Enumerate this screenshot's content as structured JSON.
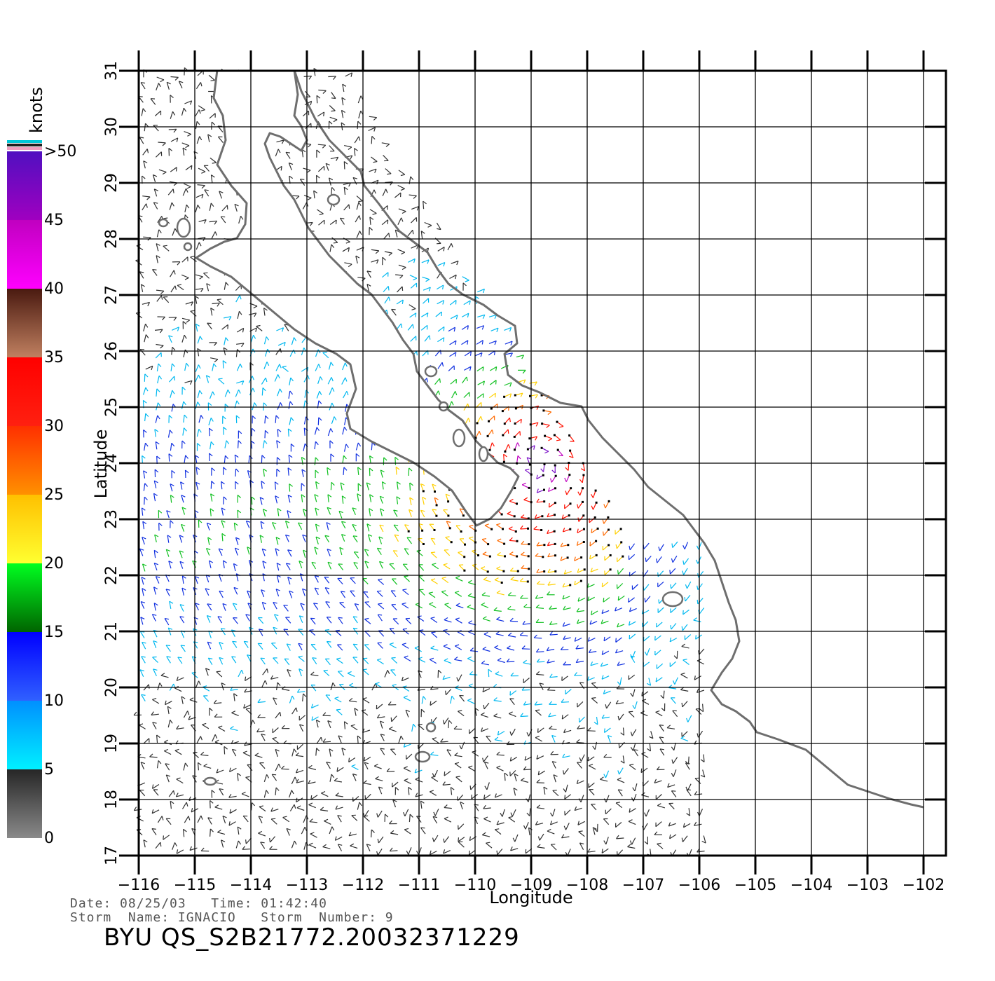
{
  "map": {
    "lon_range": [
      -116,
      -101.6
    ],
    "lat_range": [
      17,
      31
    ],
    "lon_ticks": [
      -116,
      -115,
      -114,
      -113,
      -112,
      -111,
      -110,
      -109,
      -108,
      -107,
      -106,
      -105,
      -104,
      -103,
      -102
    ],
    "lat_ticks": [
      17,
      18,
      19,
      20,
      21,
      22,
      23,
      24,
      25,
      26,
      27,
      28,
      29,
      30,
      31
    ],
    "lon_tick_labels": [
      "−116",
      "−115",
      "−114",
      "−113",
      "−112",
      "−111",
      "−110",
      "−109",
      "−108",
      "−107",
      "−106",
      "−105",
      "−104",
      "−103",
      "−102"
    ],
    "lat_tick_labels": [
      "17",
      "18",
      "19",
      "20",
      "21",
      "22",
      "23",
      "24",
      "25",
      "26",
      "27",
      "28",
      "29",
      "30",
      "31"
    ],
    "xlabel": "Longitude",
    "ylabel": "Latitude",
    "grid": true,
    "coastline_color": "#6e6e6e",
    "land_color": "#ffffff",
    "wind_vector_field": {
      "type": "wind barbs",
      "storm_center": {
        "lon": -108.9,
        "lat": 24.0
      },
      "max_speed_knots": 45,
      "coverage": "ocean swath east to about -106 longitude"
    }
  },
  "colorbar": {
    "units": "knots",
    "tick_labels": [
      "0",
      "5",
      "10",
      "15",
      "20",
      "25",
      "30",
      "35",
      "40",
      "45",
      ">50"
    ],
    "bands": [
      {
        "from": 0,
        "to": 5,
        "colors": [
          "#8a8a8a",
          "#262626"
        ]
      },
      {
        "from": 5,
        "to": 10,
        "colors": [
          "#00f0ff",
          "#0090ff"
        ]
      },
      {
        "from": 10,
        "to": 15,
        "colors": [
          "#3060ff",
          "#0000ff"
        ]
      },
      {
        "from": 15,
        "to": 20,
        "colors": [
          "#006400",
          "#00ff20"
        ]
      },
      {
        "from": 20,
        "to": 25,
        "colors": [
          "#ffff30",
          "#ffc000"
        ]
      },
      {
        "from": 25,
        "to": 30,
        "colors": [
          "#ff9000",
          "#ff3000"
        ]
      },
      {
        "from": 30,
        "to": 35,
        "colors": [
          "#ff2010",
          "#ff0000"
        ]
      },
      {
        "from": 35,
        "to": 40,
        "colors": [
          "#c08060",
          "#4a1a10"
        ]
      },
      {
        "from": 40,
        "to": 45,
        "colors": [
          "#ff00ff",
          "#c000c0"
        ]
      },
      {
        "from": 45,
        "to": 50,
        "colors": [
          "#a000c0",
          "#5010c0"
        ]
      }
    ],
    "cap_colors": [
      "#00c8d8",
      "#202020",
      "#f0a0c0"
    ]
  },
  "meta": {
    "date_line": "Date: 08/25/03   Time: 01:42:40",
    "storm_line": "Storm  Name: IGNACIO   Storm  Number: 9",
    "product_id": "BYU  QS_S2B21772.20032371229"
  }
}
